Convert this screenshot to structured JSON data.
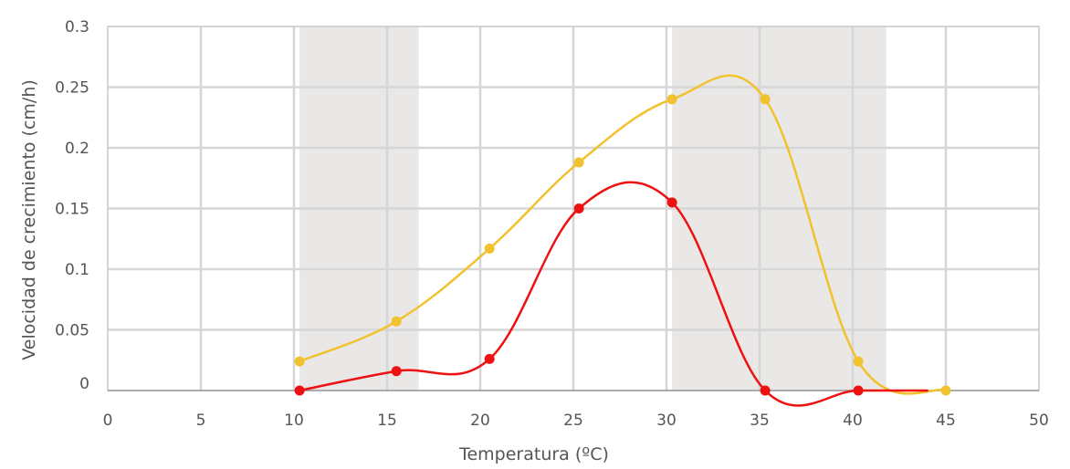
{
  "chart_data": {
    "type": "line",
    "xlabel": "Temperatura (ºC)",
    "ylabel": "Velocidad de crecimiento (cm/h)",
    "xlim": [
      0,
      50
    ],
    "ylim": [
      0,
      0.3
    ],
    "x_ticks": [
      0,
      5,
      10,
      15,
      20,
      25,
      30,
      35,
      40,
      45,
      50
    ],
    "x_tick_labels": [
      "0",
      "5",
      "10",
      "15",
      "20",
      "25",
      "30",
      "35",
      "40",
      "45",
      "50"
    ],
    "y_ticks": [
      0,
      0.05,
      0.1,
      0.15,
      0.2,
      0.25,
      0.3
    ],
    "y_tick_labels": [
      "0",
      "0.05",
      "0.1",
      "0.15",
      "0.2",
      "0.25",
      "0.3"
    ],
    "grid": true,
    "shaded_bands": [
      {
        "x_start": 10.3,
        "x_end": 16.7
      },
      {
        "x_start": 30.3,
        "x_end": 41.8
      }
    ],
    "series": [
      {
        "color": "#f2c12e",
        "x": [
          10.3,
          15.5,
          20.5,
          25.3,
          30.3,
          35.3,
          40.3,
          45
        ],
        "values": [
          0.024,
          0.057,
          0.117,
          0.188,
          0.24,
          0.24,
          0.024,
          0.0
        ]
      },
      {
        "color": "#ee1111",
        "x": [
          10.3,
          15.5,
          20.5,
          25.3,
          30.3,
          35.3,
          40.3,
          44
        ],
        "values": [
          0.0,
          0.016,
          0.026,
          0.15,
          0.155,
          0.0,
          0.0,
          0.0
        ]
      }
    ]
  }
}
